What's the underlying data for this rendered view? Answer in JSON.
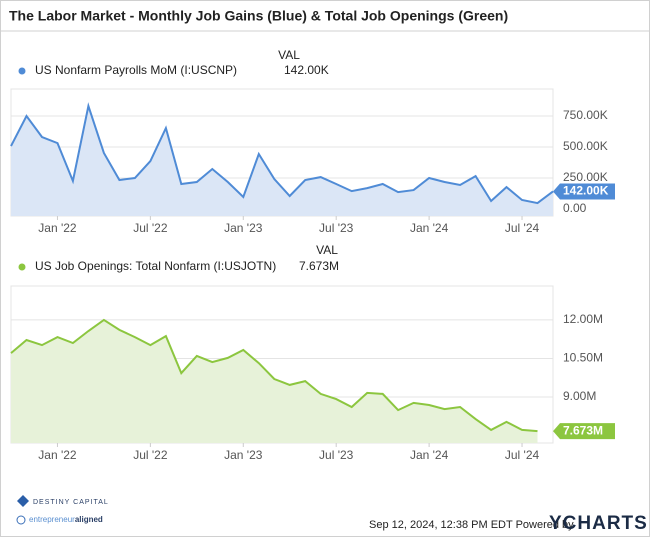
{
  "title": "The Labor Market - Monthly Job Gains (Blue) & Total Job Openings (Green)",
  "chart_data": [
    {
      "type": "line",
      "legend_header": "VAL",
      "grid": true,
      "x": [
        "2021-09",
        "2021-10",
        "2021-11",
        "2021-12",
        "2022-01",
        "2022-02",
        "2022-03",
        "2022-04",
        "2022-05",
        "2022-06",
        "2022-07",
        "2022-08",
        "2022-09",
        "2022-10",
        "2022-11",
        "2022-12",
        "2023-01",
        "2023-02",
        "2023-03",
        "2023-04",
        "2023-05",
        "2023-06",
        "2023-07",
        "2023-08",
        "2023-09",
        "2023-10",
        "2023-11",
        "2023-12",
        "2024-01",
        "2024-02",
        "2024-03",
        "2024-04",
        "2024-05",
        "2024-06",
        "2024-07",
        "2024-08"
      ],
      "series": [
        {
          "name": "US Nonfarm Payrolls MoM (I:USCNP)",
          "color": "#4f8bd6",
          "fill": "#dbe6f6",
          "values": [
            508,
            750,
            581,
            532,
            226,
            831,
            452,
            234,
            250,
            387,
            653,
            202,
            218,
            323,
            218,
            97,
            444,
            242,
            105,
            234,
            258,
            202,
            145,
            169,
            202,
            137,
            153,
            250,
            218,
            194,
            266,
            65,
            177,
            73,
            48,
            142
          ],
          "value_labels": [
            null,
            null,
            null,
            null,
            null,
            null,
            null,
            null,
            null,
            null,
            null,
            null,
            null,
            null,
            null,
            null,
            null,
            null,
            null,
            null,
            null,
            null,
            null,
            null,
            null,
            null,
            null,
            null,
            null,
            null,
            null,
            null,
            null,
            null,
            null,
            "142.00K"
          ]
        }
      ],
      "xlim": [
        "2021-09",
        "2024-08"
      ],
      "xticks": [
        {
          "value": "2022-01",
          "label": "Jan '22"
        },
        {
          "value": "2022-07",
          "label": "Jul '22"
        },
        {
          "value": "2023-01",
          "label": "Jan '23"
        },
        {
          "value": "2023-07",
          "label": "Jul '23"
        },
        {
          "value": "2024-01",
          "label": "Jan '24"
        },
        {
          "value": "2024-07",
          "label": "Jul '24"
        }
      ],
      "ylim": [
        -56,
        968
      ],
      "yticks": [
        {
          "value": 0,
          "label": "0.00"
        },
        {
          "value": 250,
          "label": "250.00K"
        },
        {
          "value": 500,
          "label": "500.00K"
        },
        {
          "value": 750,
          "label": "750.00K"
        }
      ]
    },
    {
      "type": "line",
      "legend_header": "VAL",
      "grid": true,
      "x": [
        "2021-09",
        "2021-10",
        "2021-11",
        "2021-12",
        "2022-01",
        "2022-02",
        "2022-03",
        "2022-04",
        "2022-05",
        "2022-06",
        "2022-07",
        "2022-08",
        "2022-09",
        "2022-10",
        "2022-11",
        "2022-12",
        "2023-01",
        "2023-02",
        "2023-03",
        "2023-04",
        "2023-05",
        "2023-06",
        "2023-07",
        "2023-08",
        "2023-09",
        "2023-10",
        "2023-11",
        "2023-12",
        "2024-01",
        "2024-02",
        "2024-03",
        "2024-04",
        "2024-05",
        "2024-06",
        "2024-07"
      ],
      "series": [
        {
          "name": "US Job Openings: Total Nonfarm (I:USJOTN)",
          "color": "#8cc63f",
          "fill": "#e7f2d9",
          "values": [
            10.71,
            11.22,
            11.02,
            11.33,
            11.1,
            11.57,
            12.0,
            11.61,
            11.33,
            11.02,
            11.37,
            9.93,
            10.6,
            10.36,
            10.52,
            10.83,
            10.32,
            9.7,
            9.47,
            9.62,
            9.12,
            8.92,
            8.61,
            9.16,
            9.12,
            8.49,
            8.77,
            8.69,
            8.53,
            8.61,
            8.14,
            7.72,
            8.03,
            7.72,
            7.673
          ],
          "value_labels": [
            null,
            null,
            null,
            null,
            null,
            null,
            null,
            null,
            null,
            null,
            null,
            null,
            null,
            null,
            null,
            null,
            null,
            null,
            null,
            null,
            null,
            null,
            null,
            null,
            null,
            null,
            null,
            null,
            null,
            null,
            null,
            null,
            null,
            null,
            "7.673M"
          ]
        }
      ],
      "xlim": [
        "2021-09",
        "2024-08"
      ],
      "xticks": [
        {
          "value": "2022-01",
          "label": "Jan '22"
        },
        {
          "value": "2022-07",
          "label": "Jul '22"
        },
        {
          "value": "2023-01",
          "label": "Jan '23"
        },
        {
          "value": "2023-07",
          "label": "Jul '23"
        },
        {
          "value": "2024-01",
          "label": "Jan '24"
        },
        {
          "value": "2024-07",
          "label": "Jul '24"
        }
      ],
      "ylim": [
        7.21,
        13.32
      ],
      "yticks": [
        {
          "value": 9,
          "label": "9.00M"
        },
        {
          "value": 10.5,
          "label": "10.50M"
        },
        {
          "value": 12,
          "label": "12.00M"
        }
      ]
    }
  ],
  "footer": {
    "logo_1": "DESTINY CAPITAL",
    "logo_2a": "entrepreneur",
    "logo_2b": "aligned",
    "timestamp": "Sep 12, 2024, 12:38 PM EDT",
    "powered_by": "Powered by",
    "brand": "YCHARTS"
  }
}
